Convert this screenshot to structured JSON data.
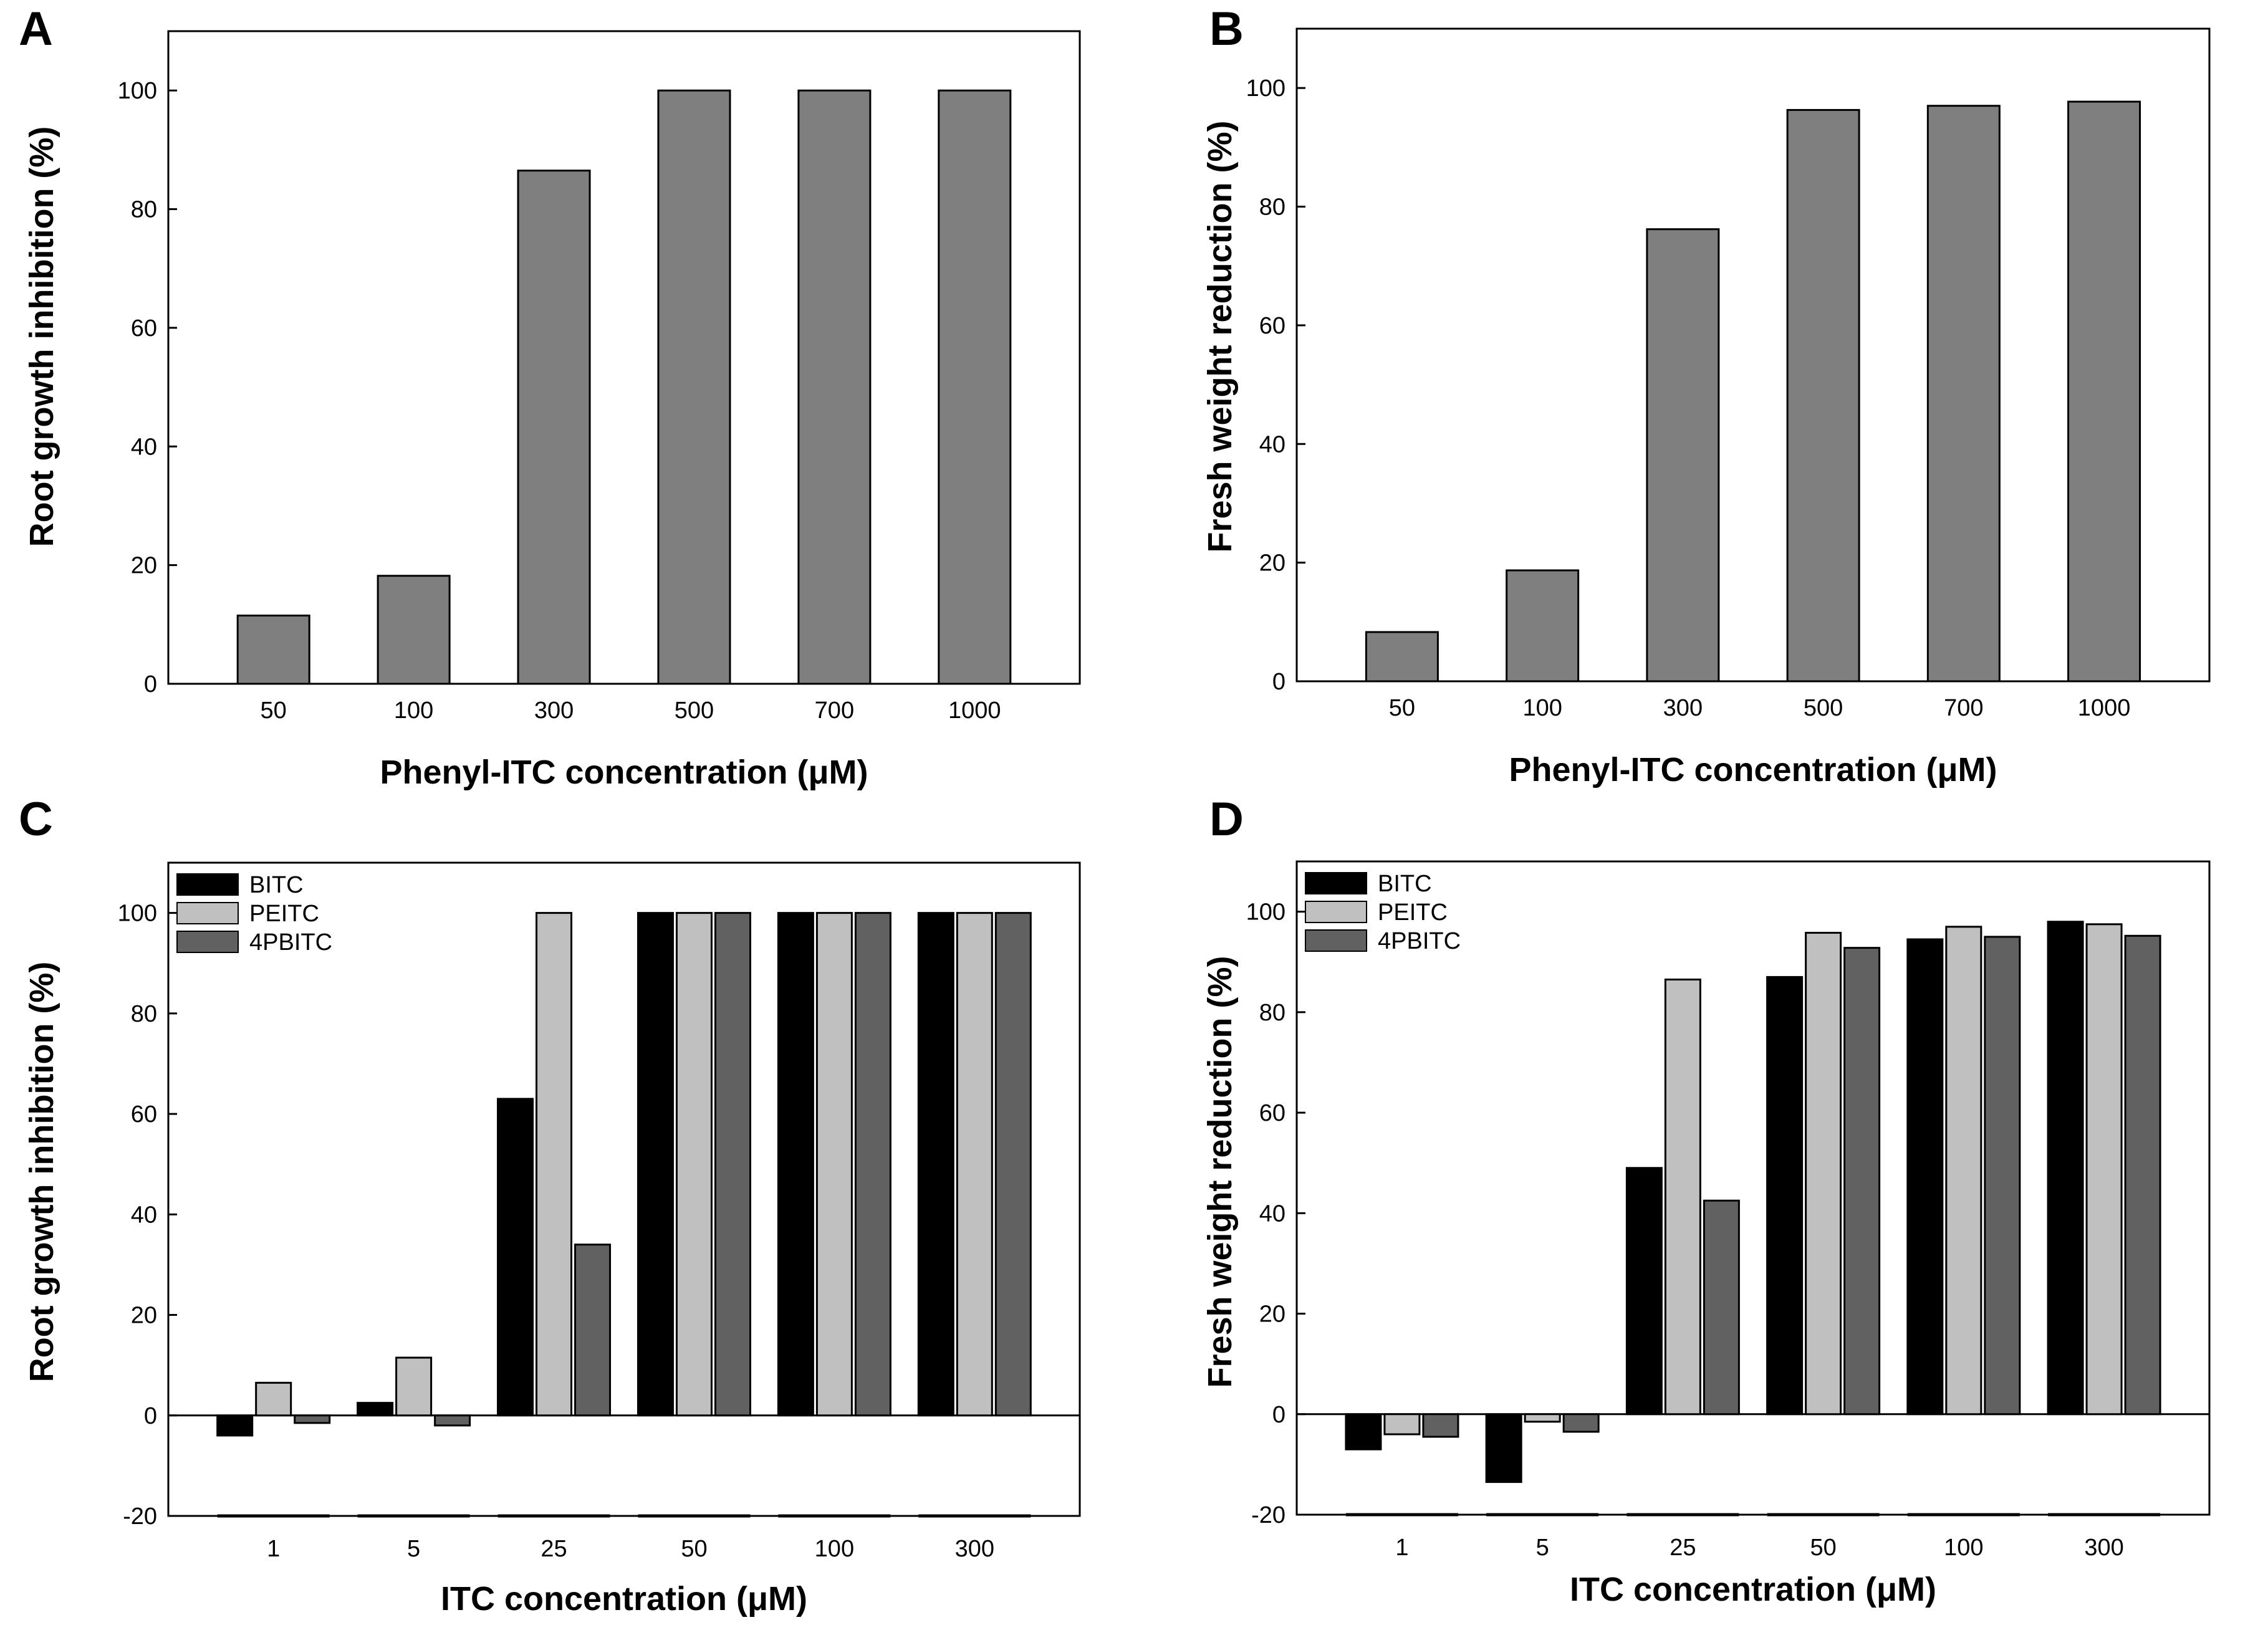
{
  "chart_data": [
    {
      "panel": "A",
      "type": "bar",
      "xlabel": "Phenyl-ITC concentration (μM)",
      "ylabel": "Root growth inhibition (%)",
      "ylim": [
        0,
        110
      ],
      "yticks": [
        0,
        20,
        40,
        60,
        80,
        100
      ],
      "categories": [
        "50",
        "100",
        "300",
        "500",
        "700",
        "1000"
      ],
      "series": [
        {
          "color": "#7f7f7f",
          "values": [
            11.5,
            18.2,
            86.5,
            100,
            100,
            100
          ]
        }
      ],
      "legend": false,
      "grid": false
    },
    {
      "panel": "B",
      "type": "bar",
      "xlabel": "Phenyl-ITC concentration (μM)",
      "ylabel": "Fresh weight reduction (%)",
      "ylim": [
        0,
        110
      ],
      "yticks": [
        0,
        20,
        40,
        60,
        80,
        100
      ],
      "categories": [
        "50",
        "100",
        "300",
        "500",
        "700",
        "1000"
      ],
      "series": [
        {
          "color": "#7f7f7f",
          "values": [
            8.3,
            18.7,
            76.2,
            96.3,
            97.0,
            97.7
          ]
        }
      ],
      "legend": false,
      "grid": false
    },
    {
      "panel": "C",
      "type": "bar",
      "xlabel": "ITC concentration (μM)",
      "ylabel": "Root growth inhibition (%)",
      "ylim": [
        -20,
        110
      ],
      "yticks": [
        -20,
        0,
        20,
        40,
        60,
        80,
        100
      ],
      "categories": [
        "1",
        "5",
        "25",
        "50",
        "100",
        "300"
      ],
      "series": [
        {
          "name": "BITC",
          "color": "#000000",
          "values": [
            -4,
            2.5,
            63,
            100,
            100,
            100
          ]
        },
        {
          "name": "PEITC",
          "color": "#c0c0c0",
          "values": [
            6.5,
            11.5,
            100,
            100,
            100,
            100
          ]
        },
        {
          "name": "4PBITC",
          "color": "#616161",
          "values": [
            -1.5,
            -2,
            34,
            100,
            100,
            100
          ]
        }
      ],
      "legend": "top-left",
      "grid": false
    },
    {
      "panel": "D",
      "type": "bar",
      "xlabel": "ITC concentration (μM)",
      "ylabel": "Fresh weight reduction (%)",
      "ylim": [
        -20,
        110
      ],
      "yticks": [
        -20,
        0,
        20,
        40,
        60,
        80,
        100
      ],
      "categories": [
        "1",
        "5",
        "25",
        "50",
        "100",
        "300"
      ],
      "series": [
        {
          "name": "BITC",
          "color": "#000000",
          "values": [
            -7,
            -13.5,
            49,
            87,
            94.5,
            98
          ]
        },
        {
          "name": "PEITC",
          "color": "#c0c0c0",
          "values": [
            -4,
            -1.5,
            86.5,
            95.8,
            97,
            97.5
          ]
        },
        {
          "name": "4PBITC",
          "color": "#616161",
          "values": [
            -4.5,
            -3.5,
            42.5,
            92.8,
            95,
            95.2
          ]
        }
      ],
      "legend": "top-left",
      "grid": false
    }
  ]
}
